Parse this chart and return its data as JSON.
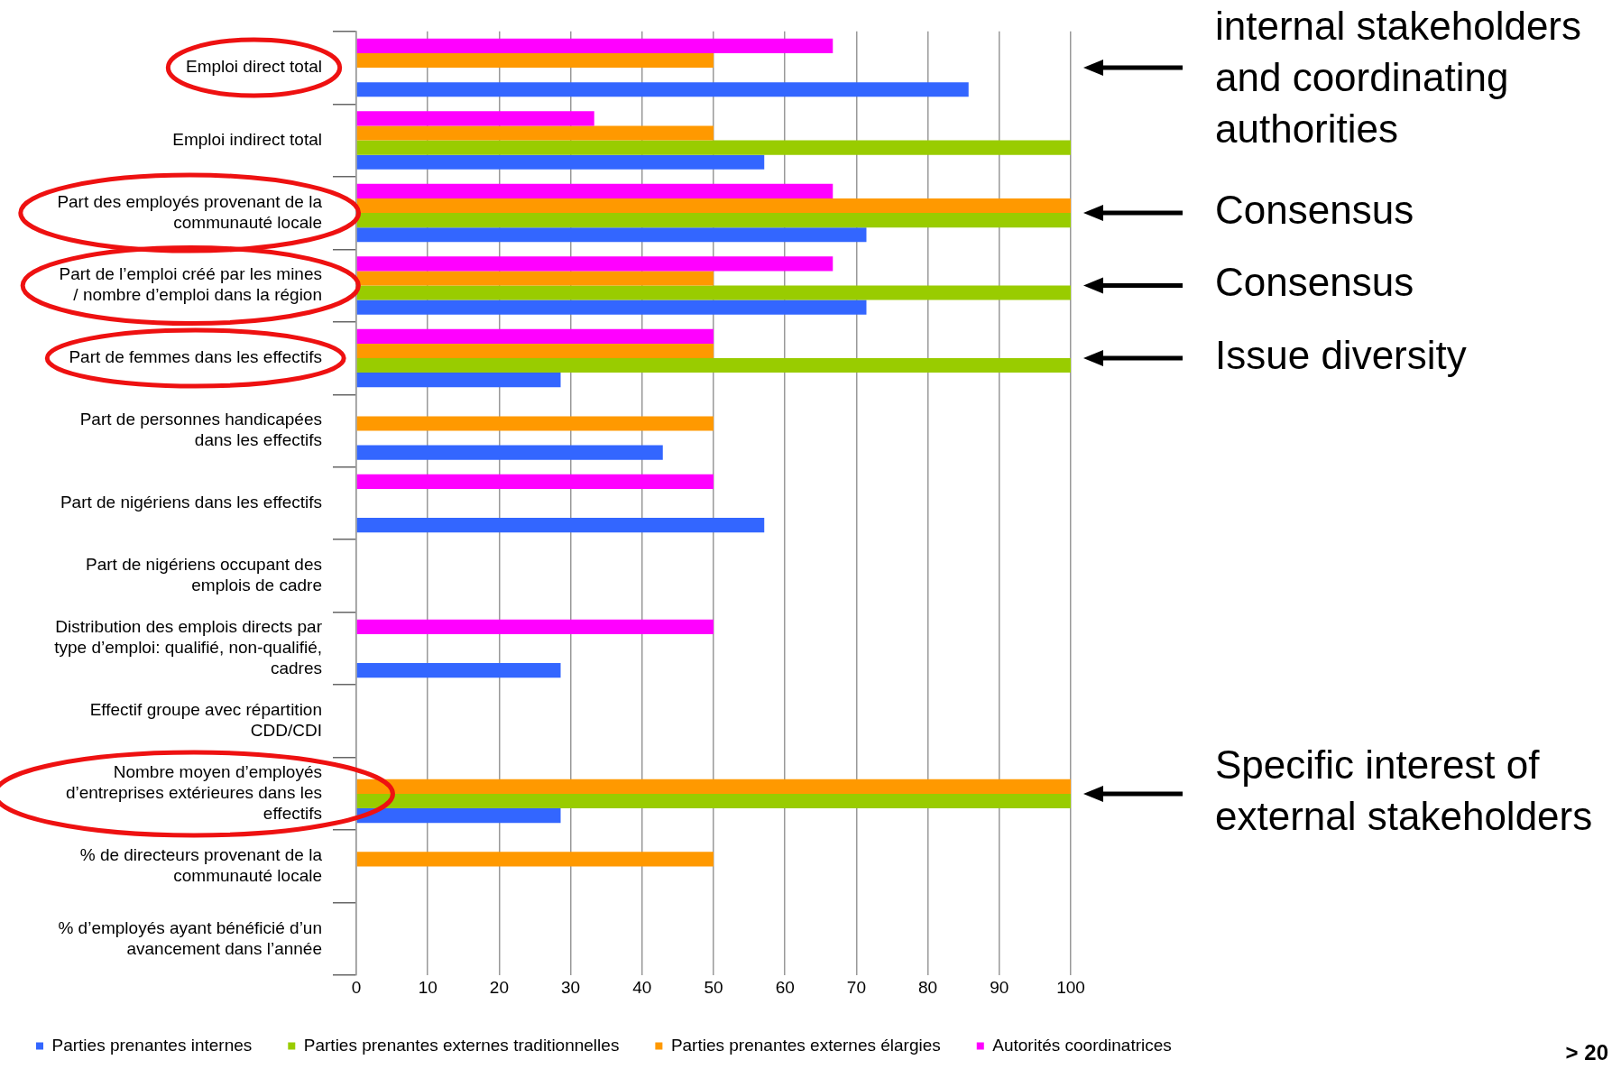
{
  "chart_data": {
    "type": "bar",
    "orientation": "horizontal",
    "categories": [
      "Emploi direct total",
      "Emploi indirect total",
      "Part des employés provenant de la communauté locale",
      "Part de l’emploi créé par les mines / nombre d’emploi dans la région",
      "Part de femmes dans les effectifs",
      "Part de personnes handicapées dans les effectifs",
      "Part de nigériens dans les effectifs",
      "Part de nigériens occupant des emplois de cadre",
      "Distribution des emplois directs par type d’emploi: qualifié, non-qualifié, cadres",
      "Effectif groupe avec répartition CDD/CDI",
      "Nombre moyen d’employés d’entreprises extérieures dans les effectifs",
      "% de directeurs provenant de la communauté locale",
      "% d’employés ayant bénéficié d’un avancement dans l’année"
    ],
    "series": [
      {
        "name": "Parties prenantes internes",
        "color": "#3366ff",
        "values": [
          85.7,
          57.1,
          71.4,
          71.4,
          28.6,
          42.9,
          57.1,
          0,
          28.6,
          0,
          28.6,
          0,
          0
        ]
      },
      {
        "name": "Parties prenantes externes traditionnelles",
        "color": "#99cc00",
        "values": [
          0,
          100,
          100,
          100,
          100,
          0,
          0,
          0,
          0,
          0,
          100,
          0,
          0
        ]
      },
      {
        "name": "Parties prenantes externes élargies",
        "color": "#ff9900",
        "values": [
          50,
          50,
          100,
          50,
          50,
          50,
          0,
          0,
          0,
          0,
          100,
          50,
          0
        ]
      },
      {
        "name": "Autorités coordinatrices",
        "color": "#ff00ff",
        "values": [
          66.7,
          33.3,
          66.7,
          66.7,
          50,
          0,
          50,
          0,
          50,
          0,
          0,
          0,
          0
        ]
      }
    ],
    "xlim": [
      0,
      100
    ],
    "xticks": [
      0,
      10,
      20,
      30,
      40,
      50,
      60,
      70,
      80,
      90,
      100
    ],
    "grid": "x",
    "legend": "bottom",
    "annotations": [
      "internal stakeholders and coordinating authorities",
      "Consensus",
      "Consensus",
      "Issue diversity",
      "Specific interest of external stakeholders",
      "> 20"
    ]
  }
}
